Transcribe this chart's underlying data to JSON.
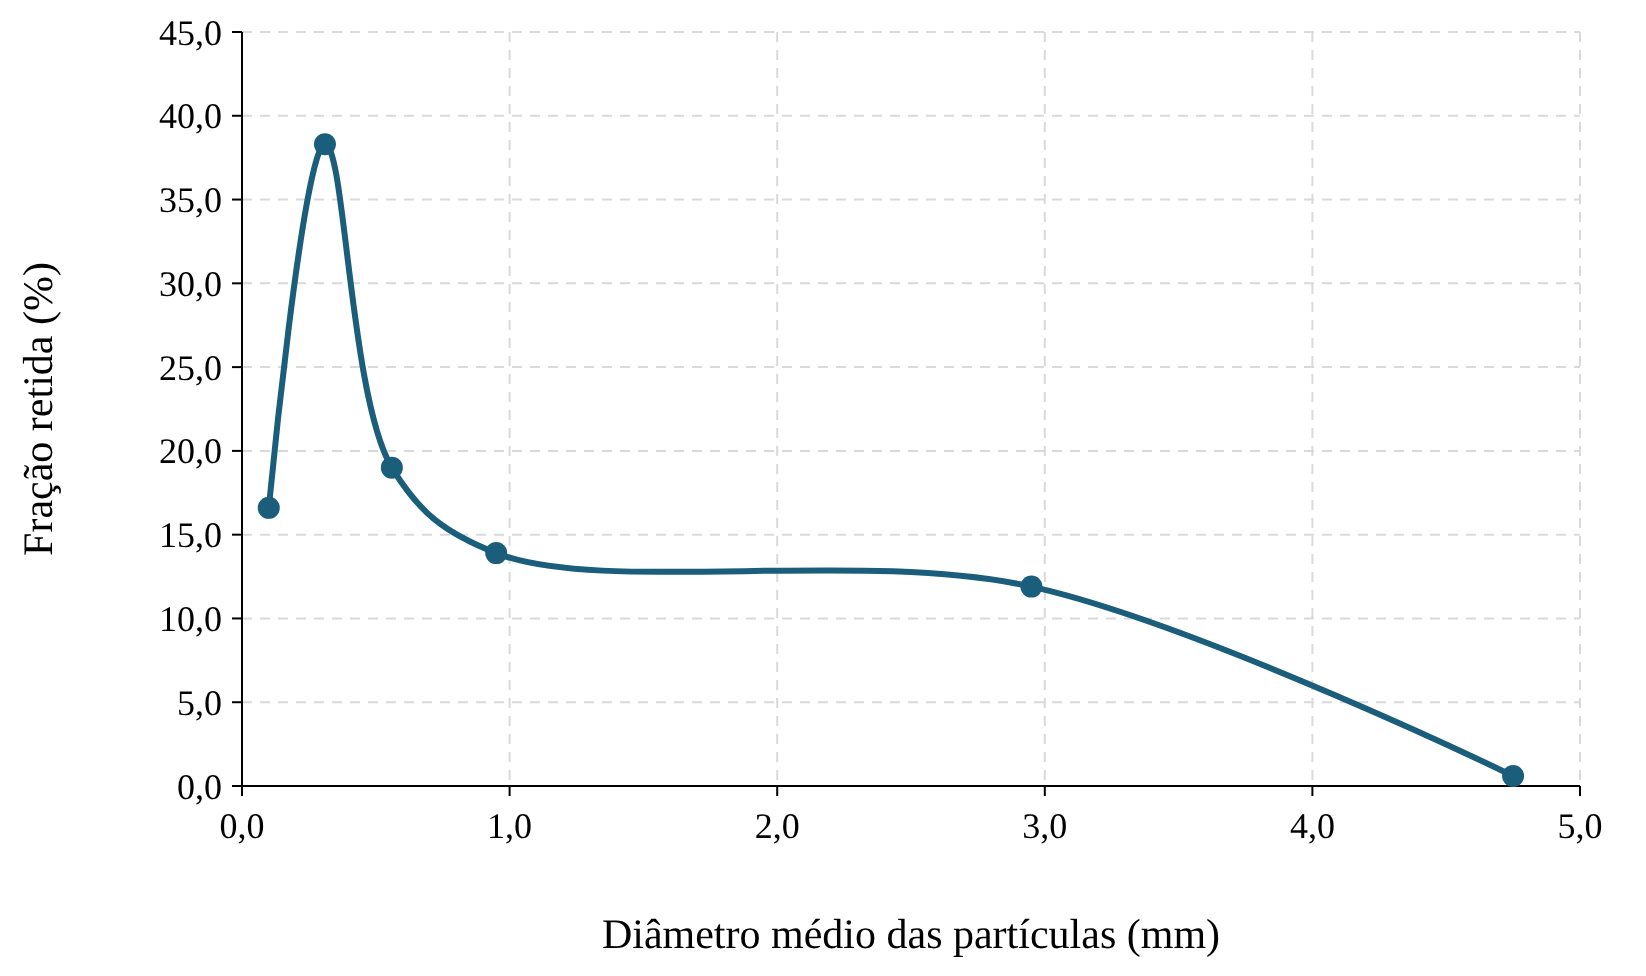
{
  "chart_data": {
    "type": "line",
    "xlabel": "Diâmetro médio das partículas (mm)",
    "ylabel": "Fração retida (%)",
    "x": [
      0.1,
      0.31,
      0.56,
      0.95,
      2.95,
      4.75
    ],
    "series": [
      {
        "color": "#1b5e7b",
        "values": [
          16.6,
          38.3,
          19.0,
          13.9,
          11.9,
          0.6
        ]
      }
    ],
    "xlim": [
      0,
      5
    ],
    "xticks": [
      {
        "value": 0,
        "label": "0,0"
      },
      {
        "value": 1,
        "label": "1,0"
      },
      {
        "value": 2,
        "label": "2,0"
      },
      {
        "value": 3,
        "label": "3,0"
      },
      {
        "value": 4,
        "label": "4,0"
      },
      {
        "value": 5,
        "label": "5,0"
      }
    ],
    "ylim": [
      0,
      45
    ],
    "yticks": [
      {
        "value": 0,
        "label": "0,0"
      },
      {
        "value": 5,
        "label": "5,0"
      },
      {
        "value": 10,
        "label": "10,0"
      },
      {
        "value": 15,
        "label": "15,0"
      },
      {
        "value": 20,
        "label": "20,0"
      },
      {
        "value": 25,
        "label": "25,0"
      },
      {
        "value": 30,
        "label": "30,0"
      },
      {
        "value": 35,
        "label": "35,0"
      },
      {
        "value": 40,
        "label": "40,0"
      },
      {
        "value": 45,
        "label": "45,0"
      }
    ],
    "grid": true,
    "marker": "circle",
    "line_style": "solid"
  }
}
